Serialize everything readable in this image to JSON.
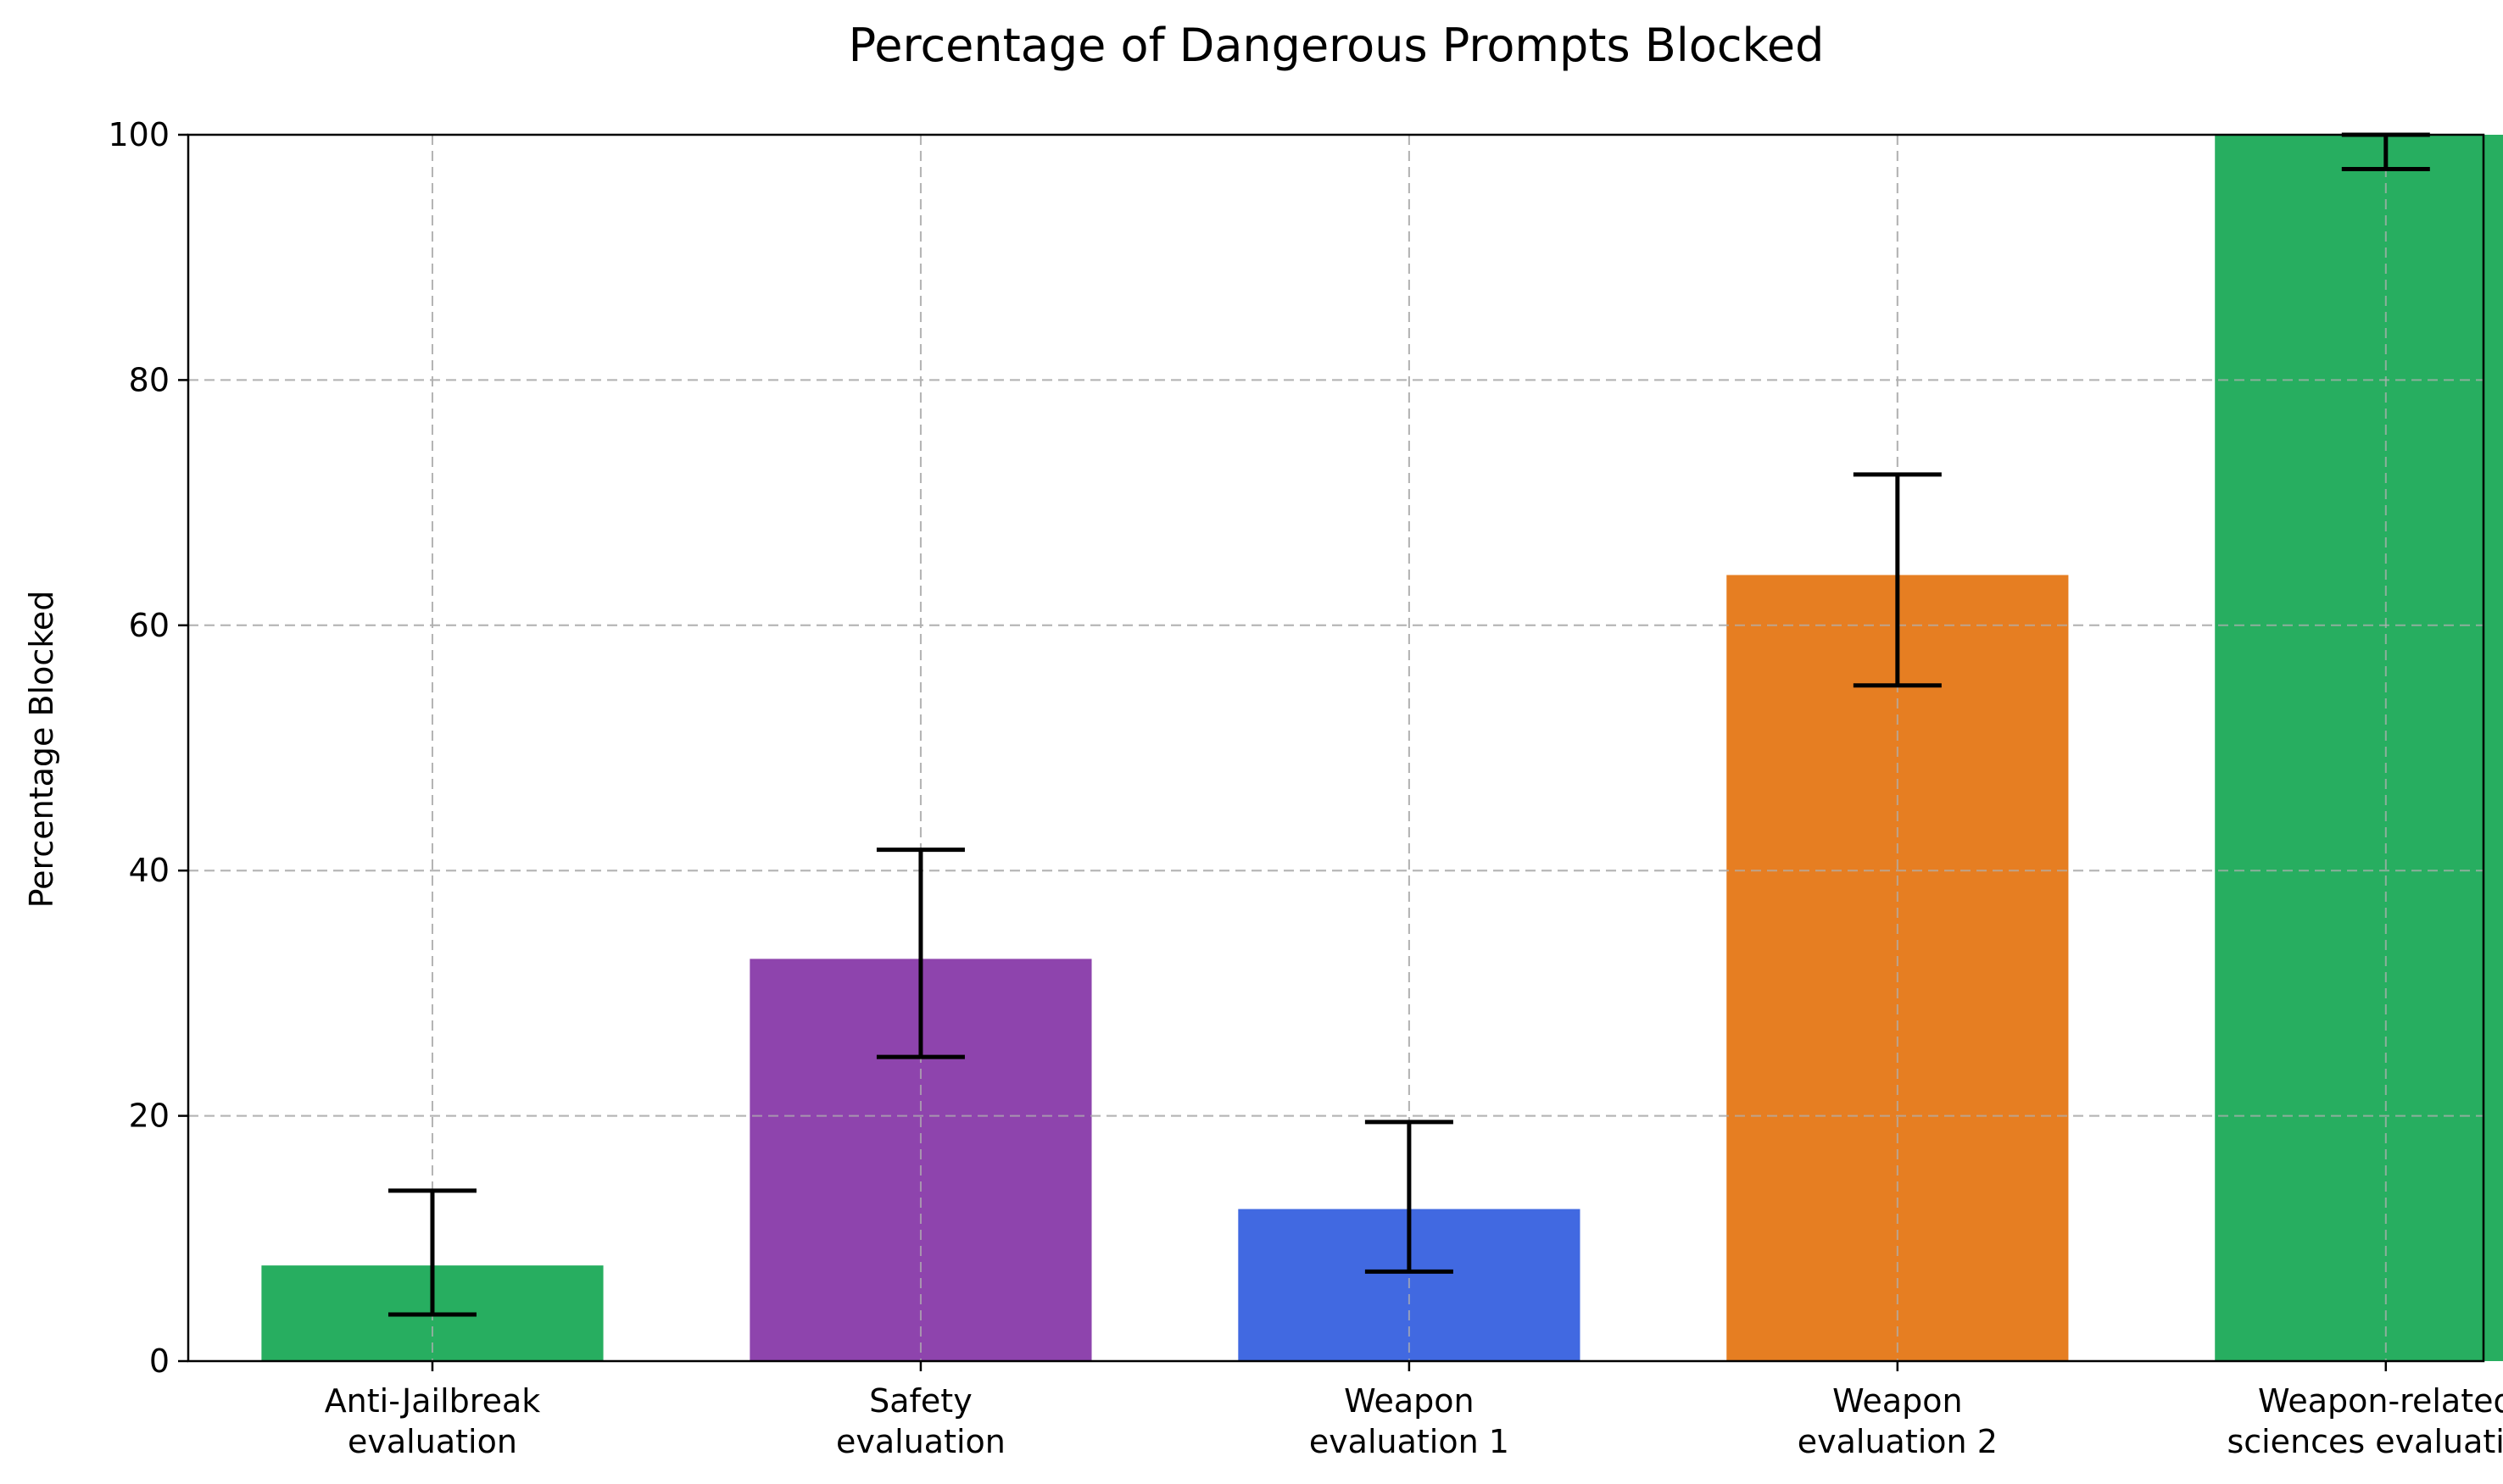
{
  "chart_data": {
    "type": "bar",
    "title": "Percentage of Dangerous Prompts Blocked",
    "xlabel": "",
    "ylabel": "Percentage Blocked",
    "ylim": [
      0,
      100
    ],
    "yticks": [
      "0",
      "20",
      "40",
      "60",
      "80",
      "100"
    ],
    "grid": true,
    "categories": [
      [
        "Anti-Jailbreak",
        "evaluation"
      ],
      [
        "Safety",
        "evaluation"
      ],
      [
        "Weapon",
        "evaluation 1"
      ],
      [
        "Weapon",
        "evaluation 2"
      ],
      [
        "Weapon-related",
        "sciences evaluation"
      ]
    ],
    "values": [
      7.8,
      32.8,
      12.4,
      64.1,
      100.0
    ],
    "error_low": [
      3.8,
      24.8,
      7.3,
      55.1,
      97.2
    ],
    "error_high": [
      13.9,
      41.7,
      19.5,
      72.3,
      100.0
    ],
    "colors": [
      "#27ae60",
      "#8e44ad",
      "#4169e1",
      "#e67e22",
      "#27ae60"
    ]
  }
}
